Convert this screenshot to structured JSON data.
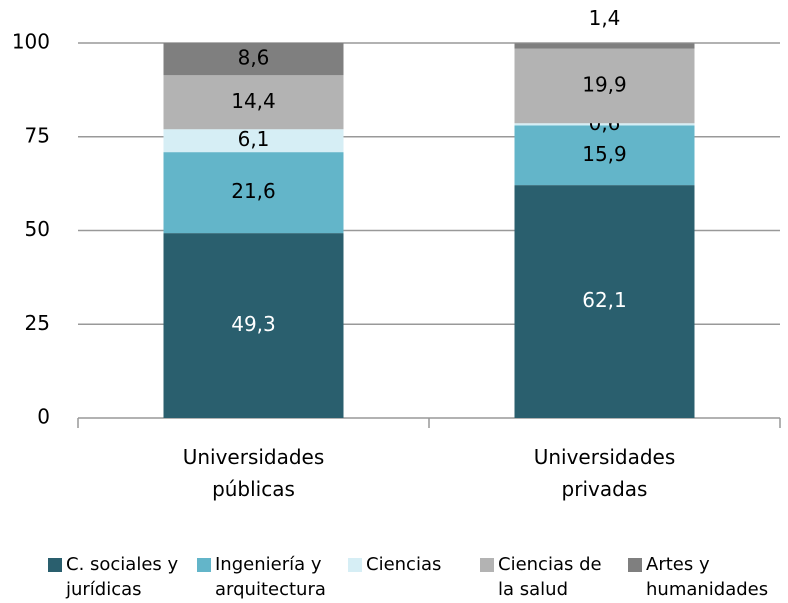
{
  "chart_data": {
    "type": "stacked_bar",
    "categories": [
      "Universidades públicas",
      "Universidades privadas"
    ],
    "series": [
      {
        "name": "C. sociales y jurídicas",
        "color": "#2a5f6e",
        "label_color": "#ffffff",
        "values": [
          49.3,
          62.1
        ],
        "value_labels": [
          "49,3",
          "62,1"
        ]
      },
      {
        "name": "Ingeniería y arquitectura",
        "color": "#63b5c9",
        "label_color": "#000000",
        "values": [
          21.6,
          15.9
        ],
        "value_labels": [
          "21,6",
          "15,9"
        ]
      },
      {
        "name": "Ciencias",
        "color": "#d6eef5",
        "label_color": "#000000",
        "values": [
          6.1,
          0.6
        ],
        "value_labels": [
          "6,1",
          "0,6"
        ]
      },
      {
        "name": "Ciencias de la salud",
        "color": "#b3b3b3",
        "label_color": "#000000",
        "values": [
          14.4,
          19.9
        ],
        "value_labels": [
          "14,4",
          "19,9"
        ]
      },
      {
        "name": "Artes y humanidades",
        "color": "#7f7f7f",
        "label_color": "#000000",
        "values": [
          8.6,
          1.4
        ],
        "value_labels": [
          "8,6",
          "1,4"
        ]
      }
    ],
    "ylim": [
      0,
      100
    ],
    "yticks": [
      0,
      25,
      50,
      75,
      100
    ],
    "grid": true,
    "legend": "bottom"
  }
}
